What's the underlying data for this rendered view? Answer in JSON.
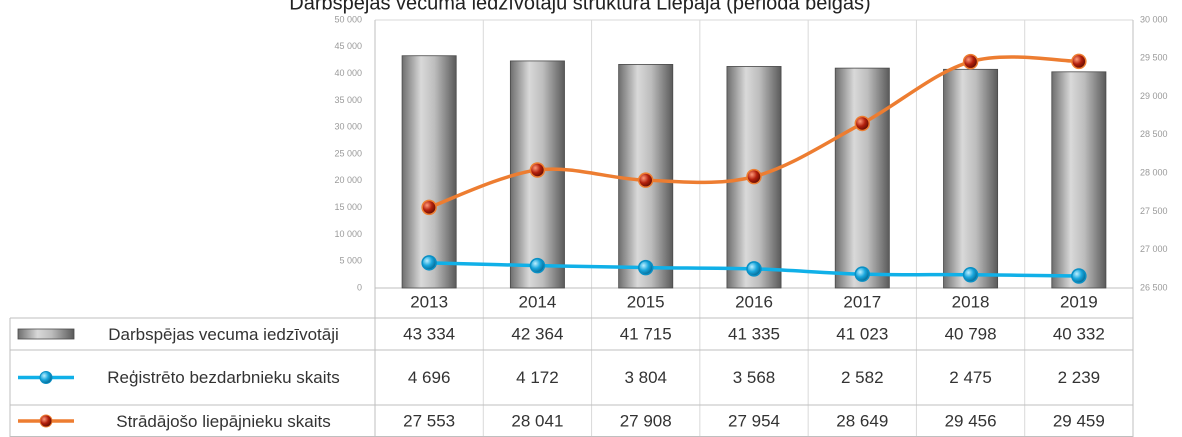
{
  "chart_data": {
    "type": "combo",
    "title": "Darbspējas vecuma iedzīvotāju struktūra Liepājā (perioda beigās)",
    "categories": [
      "2013",
      "2014",
      "2015",
      "2016",
      "2017",
      "2018",
      "2019"
    ],
    "series": [
      {
        "name": "Darbspējas vecuma iedzīvotāji",
        "type": "bar",
        "axis": "y",
        "color": "#9e9e9e",
        "values": [
          43334,
          42364,
          41715,
          41335,
          41023,
          40798,
          40332
        ],
        "value_labels": [
          "43 334",
          "42 364",
          "41 715",
          "41 335",
          "41 023",
          "40 798",
          "40 332"
        ]
      },
      {
        "name": "Reģistrēto bezdarbnieku skaits",
        "type": "line",
        "axis": "y",
        "color": "#10b0e8",
        "values": [
          4696,
          4172,
          3804,
          3568,
          2582,
          2475,
          2239
        ],
        "value_labels": [
          "4 696",
          "4 172",
          "3 804",
          "3 568",
          "2 582",
          "2 475",
          "2 239"
        ]
      },
      {
        "name": "Strādājošo liepājnieku skaits",
        "type": "line",
        "axis": "y2",
        "color": "#ed7d31",
        "values": [
          27553,
          28041,
          27908,
          27954,
          28649,
          29456,
          29459
        ],
        "value_labels": [
          "27 553",
          "28 041",
          "27 908",
          "27 954",
          "28 649",
          "29 456",
          "29 459"
        ]
      }
    ],
    "ylim": [
      0,
      50000
    ],
    "yticks": [
      0,
      {
        "value": 5000,
        "label": "5 000"
      },
      {
        "value": 10000,
        "label": "10 000"
      },
      {
        "value": 15000,
        "label": "15 000"
      },
      {
        "value": 20000,
        "label": "20 000"
      },
      {
        "value": 25000,
        "label": "25 000"
      },
      {
        "value": 30000,
        "label": "30 000"
      },
      {
        "value": 35000,
        "label": "35 000"
      },
      {
        "value": 40000,
        "label": "40 000"
      },
      {
        "value": 45000,
        "label": "45 000"
      },
      {
        "value": 50000,
        "label": "50 000"
      }
    ],
    "y2lim": [
      26500,
      30000
    ],
    "y2ticks": [
      {
        "value": 26500,
        "label": "26 500"
      },
      {
        "value": 27000,
        "label": "27 000"
      },
      {
        "value": 27500,
        "label": "27 500"
      },
      {
        "value": 28000,
        "label": "28 000"
      },
      {
        "value": 28500,
        "label": "28 500"
      },
      {
        "value": 29000,
        "label": "29 000"
      },
      {
        "value": 29500,
        "label": "29 500"
      },
      {
        "value": 30000,
        "label": "30 000"
      }
    ]
  }
}
